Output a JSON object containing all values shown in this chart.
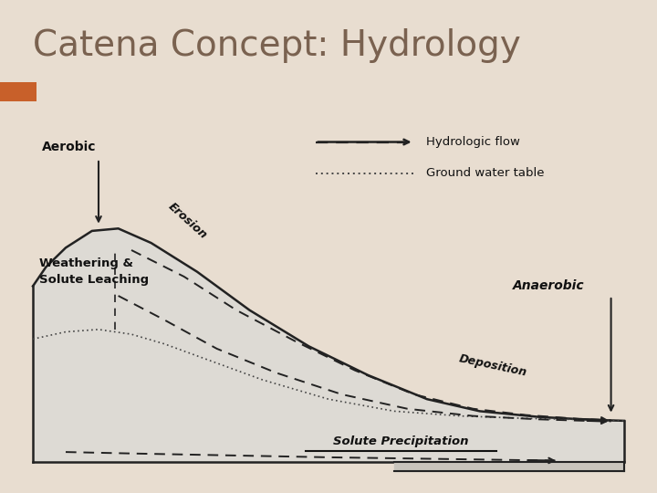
{
  "title": "Catena Concept: Hydrology",
  "title_color": "#7a6250",
  "bg_color": "#e8ddd0",
  "header_bar_color": "#9ab4c8",
  "header_accent_color": "#c8602a",
  "text_color": "#111111",
  "slope_fill": "#dddad4",
  "slope_stroke": "#222222",
  "legend_dashed_label": "Hydrologic flow",
  "legend_dotted_label": "Ground water table",
  "aerobic_label": "Aerobic",
  "anaerobic_label": "Anaerobic",
  "weathering_label": "Weathering &\nSolute Leaching",
  "erosion_label": "Erosion",
  "deposition_label": "Deposition",
  "solute_label": "Solute Precipitation"
}
